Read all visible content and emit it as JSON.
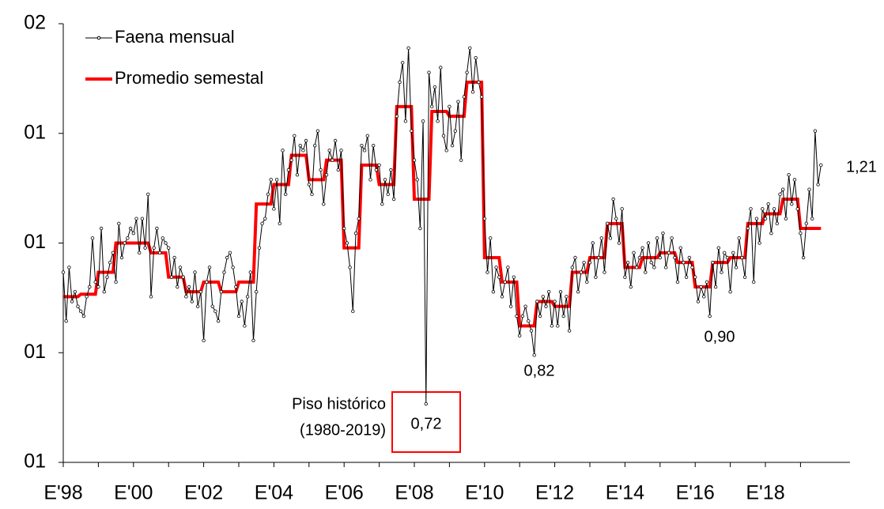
{
  "chart_data": {
    "type": "line",
    "categories": [
      "E'98",
      null,
      null,
      null,
      null,
      null,
      null,
      null,
      null,
      null,
      null,
      null,
      null,
      null,
      null,
      null,
      null,
      null,
      null,
      null,
      null,
      null,
      null,
      null,
      "E'00",
      null,
      null,
      null,
      null,
      null,
      null,
      null,
      null,
      null,
      null,
      null,
      null,
      null,
      null,
      null,
      null,
      null,
      null,
      null,
      null,
      null,
      null,
      null,
      "E'02",
      null,
      null,
      null,
      null,
      null,
      null,
      null,
      null,
      null,
      null,
      null,
      null,
      null,
      null,
      null,
      null,
      null,
      null,
      null,
      null,
      null,
      null,
      null,
      "E'04",
      null,
      null,
      null,
      null,
      null,
      null,
      null,
      null,
      null,
      null,
      null,
      null,
      null,
      null,
      null,
      null,
      null,
      null,
      null,
      null,
      null,
      null,
      null,
      "E'06",
      null,
      null,
      null,
      null,
      null,
      null,
      null,
      null,
      null,
      null,
      null,
      null,
      null,
      null,
      null,
      null,
      null,
      null,
      null,
      null,
      null,
      null,
      null,
      "E'08",
      null,
      null,
      null,
      null,
      null,
      null,
      null,
      null,
      null,
      null,
      null,
      null,
      null,
      null,
      null,
      null,
      null,
      null,
      null,
      null,
      null,
      null,
      null,
      "E'10",
      null,
      null,
      null,
      null,
      null,
      null,
      null,
      null,
      null,
      null,
      null,
      null,
      null,
      null,
      null,
      null,
      null,
      null,
      null,
      null,
      null,
      null,
      null,
      "E'12",
      null,
      null,
      null,
      null,
      null,
      null,
      null,
      null,
      null,
      null,
      null,
      null,
      null,
      null,
      null,
      null,
      null,
      null,
      null,
      null,
      null,
      null,
      null,
      "E'14",
      null,
      null,
      null,
      null,
      null,
      null,
      null,
      null,
      null,
      null,
      null,
      null,
      null,
      null,
      null,
      null,
      null,
      null,
      null,
      null,
      null,
      null,
      null,
      "E'16",
      null,
      null,
      null,
      null,
      null,
      null,
      null,
      null,
      null,
      null,
      null,
      null,
      null,
      null,
      null,
      null,
      null,
      null,
      null,
      null,
      null,
      null,
      null,
      "E'18",
      null,
      null,
      null,
      null,
      null,
      null,
      null,
      null,
      null,
      null,
      null,
      null,
      null,
      null,
      null,
      null,
      null,
      null,
      null
    ],
    "series": [
      {
        "name": "Faena mensual",
        "color": "#000000",
        "values": [
          0.99,
          0.89,
          1.0,
          0.93,
          0.95,
          0.92,
          0.91,
          0.9,
          0.94,
          0.96,
          1.06,
          0.97,
          0.96,
          1.08,
          0.95,
          0.98,
          1.01,
          1.03,
          0.97,
          1.09,
          1.02,
          1.05,
          1.06,
          1.08,
          1.07,
          1.1,
          1.03,
          1.1,
          1.04,
          1.15,
          0.94,
          1.04,
          1.08,
          1.03,
          1.06,
          1.05,
          1.04,
          0.98,
          1.02,
          0.96,
          1.0,
          0.98,
          0.94,
          0.96,
          0.93,
          0.99,
          0.92,
          0.95,
          0.85,
          0.97,
          1.0,
          0.92,
          0.91,
          0.89,
          0.95,
          0.99,
          1.02,
          1.03,
          1.0,
          0.96,
          0.9,
          0.93,
          0.88,
          0.94,
          0.99,
          0.85,
          0.95,
          1.04,
          1.09,
          1.1,
          1.15,
          1.18,
          1.12,
          1.18,
          1.09,
          1.24,
          1.15,
          1.2,
          1.22,
          1.27,
          1.19,
          1.25,
          1.24,
          1.26,
          1.17,
          1.15,
          1.25,
          1.28,
          1.2,
          1.13,
          1.19,
          1.24,
          1.22,
          1.26,
          1.2,
          1.24,
          1.08,
          1.05,
          1.0,
          0.91,
          1.07,
          1.1,
          1.25,
          1.24,
          1.27,
          1.18,
          1.25,
          1.2,
          1.21,
          1.13,
          1.18,
          1.15,
          1.2,
          1.14,
          1.31,
          1.38,
          1.42,
          1.3,
          1.45,
          1.28,
          1.22,
          1.18,
          1.08,
          1.3,
          0.72,
          1.4,
          1.33,
          1.37,
          1.3,
          1.41,
          1.27,
          1.24,
          1.33,
          1.25,
          1.28,
          1.34,
          1.22,
          1.35,
          1.4,
          1.45,
          1.36,
          1.43,
          1.38,
          1.35,
          1.1,
          0.99,
          1.06,
          0.95,
          1.0,
          0.98,
          0.94,
          0.97,
          1.0,
          0.92,
          0.98,
          0.9,
          0.86,
          0.9,
          0.92,
          0.89,
          0.87,
          0.82,
          0.93,
          0.9,
          0.94,
          0.92,
          0.95,
          0.88,
          0.93,
          0.88,
          0.95,
          0.9,
          0.94,
          0.87,
          1.0,
          1.02,
          0.95,
          0.99,
          1.01,
          0.97,
          1.01,
          1.05,
          0.98,
          1.02,
          1.06,
          0.99,
          1.09,
          1.06,
          1.14,
          1.1,
          1.05,
          1.12,
          0.98,
          1.01,
          0.96,
          1.03,
          1.0,
          1.02,
          1.04,
          0.99,
          1.05,
          1.01,
          1.0,
          1.06,
          1.02,
          1.07,
          1.0,
          1.03,
          1.06,
          1.02,
          0.97,
          1.04,
          1.01,
          0.98,
          1.02,
          1.0,
          0.98,
          0.93,
          0.96,
          0.94,
          0.97,
          0.9,
          1.01,
          0.96,
          1.04,
          0.99,
          1.03,
          1.02,
          0.95,
          1.03,
          1.0,
          1.06,
          1.02,
          0.98,
          1.08,
          1.12,
          0.97,
          1.1,
          1.05,
          1.12,
          1.1,
          1.13,
          1.07,
          1.12,
          1.09,
          1.15,
          1.16,
          1.1,
          1.19,
          1.13,
          1.18,
          1.12,
          1.07,
          1.02,
          1.09,
          1.16,
          1.1,
          1.28,
          1.17,
          1.21
        ]
      },
      {
        "name": "Promedio semestal",
        "color": "#ff0000",
        "values": [
          0.94,
          0.94,
          0.94,
          0.94,
          0.94,
          0.94,
          0.945,
          0.945,
          0.945,
          0.945,
          0.945,
          0.945,
          0.99,
          0.99,
          0.99,
          0.99,
          0.99,
          0.99,
          1.05,
          1.05,
          1.05,
          1.05,
          1.05,
          1.05,
          1.05,
          1.05,
          1.05,
          1.05,
          1.05,
          1.05,
          1.03,
          1.03,
          1.03,
          1.03,
          1.03,
          1.03,
          0.98,
          0.98,
          0.98,
          0.98,
          0.98,
          0.98,
          0.95,
          0.95,
          0.95,
          0.95,
          0.95,
          0.95,
          0.97,
          0.97,
          0.97,
          0.97,
          0.97,
          0.97,
          0.95,
          0.95,
          0.95,
          0.95,
          0.95,
          0.95,
          0.97,
          0.97,
          0.97,
          0.97,
          0.97,
          0.97,
          1.13,
          1.13,
          1.13,
          1.13,
          1.13,
          1.13,
          1.17,
          1.17,
          1.17,
          1.17,
          1.17,
          1.17,
          1.23,
          1.23,
          1.23,
          1.23,
          1.23,
          1.23,
          1.18,
          1.18,
          1.18,
          1.18,
          1.18,
          1.18,
          1.22,
          1.22,
          1.22,
          1.22,
          1.22,
          1.22,
          1.04,
          1.04,
          1.04,
          1.04,
          1.04,
          1.04,
          1.21,
          1.21,
          1.21,
          1.21,
          1.21,
          1.21,
          1.17,
          1.17,
          1.17,
          1.17,
          1.17,
          1.17,
          1.33,
          1.33,
          1.33,
          1.33,
          1.33,
          1.33,
          1.14,
          1.14,
          1.14,
          1.14,
          1.14,
          1.14,
          1.32,
          1.32,
          1.32,
          1.32,
          1.32,
          1.32,
          1.31,
          1.31,
          1.31,
          1.31,
          1.31,
          1.31,
          1.38,
          1.38,
          1.38,
          1.38,
          1.38,
          1.38,
          1.02,
          1.02,
          1.02,
          1.02,
          1.02,
          1.02,
          0.97,
          0.97,
          0.97,
          0.97,
          0.97,
          0.97,
          0.88,
          0.88,
          0.88,
          0.88,
          0.88,
          0.88,
          0.93,
          0.93,
          0.93,
          0.93,
          0.93,
          0.93,
          0.92,
          0.92,
          0.92,
          0.92,
          0.92,
          0.92,
          0.99,
          0.99,
          0.99,
          0.99,
          0.99,
          0.99,
          1.02,
          1.02,
          1.02,
          1.02,
          1.02,
          1.02,
          1.09,
          1.09,
          1.09,
          1.09,
          1.09,
          1.09,
          1.0,
          1.0,
          1.0,
          1.0,
          1.0,
          1.0,
          1.02,
          1.02,
          1.02,
          1.02,
          1.02,
          1.02,
          1.03,
          1.03,
          1.03,
          1.03,
          1.03,
          1.03,
          1.01,
          1.01,
          1.01,
          1.01,
          1.01,
          1.01,
          0.96,
          0.96,
          0.96,
          0.96,
          0.96,
          0.96,
          1.01,
          1.01,
          1.01,
          1.01,
          1.01,
          1.01,
          1.02,
          1.02,
          1.02,
          1.02,
          1.02,
          1.02,
          1.09,
          1.09,
          1.09,
          1.09,
          1.09,
          1.09,
          1.11,
          1.11,
          1.11,
          1.11,
          1.11,
          1.11,
          1.14,
          1.14,
          1.14,
          1.14,
          1.14,
          1.14,
          1.08,
          1.08,
          1.08,
          1.08,
          1.08,
          1.08,
          1.08,
          1.08
        ]
      }
    ],
    "ylim": [
      0.6,
      1.5
    ],
    "yticks": [
      {
        "value": 0.6,
        "label": "01"
      },
      {
        "value": 0.825,
        "label": "01"
      },
      {
        "value": 1.05,
        "label": "01"
      },
      {
        "value": 1.275,
        "label": "01"
      },
      {
        "value": 1.5,
        "label": "02"
      }
    ],
    "annotations": [
      "0,72",
      "0,82",
      "0,90",
      "1,21",
      "Piso histórico",
      "(1980-2019)"
    ],
    "legend": "upper left"
  }
}
